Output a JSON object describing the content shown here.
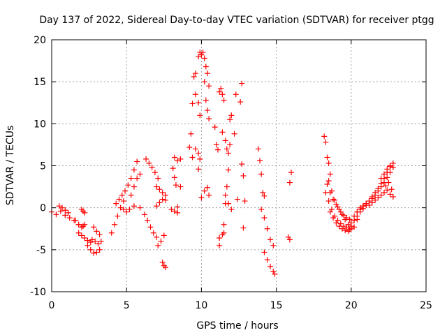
{
  "chart_data": {
    "type": "scatter",
    "title": "Day 137 of 2022, Sidereal Day-to-day VTEC variation (SDTVAR) for receiver ptgg",
    "xlabel": "GPS time / hours",
    "ylabel": "SDTVAR / TECUs",
    "xlim": [
      0,
      25
    ],
    "ylim": [
      -10,
      20
    ],
    "xticks": [
      "0",
      "5",
      "10",
      "15",
      "20",
      "25"
    ],
    "yticks": [
      "-10",
      "-5",
      "0",
      "5",
      "10",
      "15",
      "20"
    ],
    "grid": true,
    "marker": "+",
    "color": "#ff0000",
    "series": [
      {
        "name": "seg1",
        "x": [
          0.0,
          0.3,
          0.6,
          0.9,
          1.2,
          1.5,
          1.8,
          2.1
        ],
        "y": [
          -0.5,
          -0.8,
          -0.4,
          -0.9,
          -1.2,
          -1.5,
          -2.0,
          -2.2
        ]
      },
      {
        "name": "seg2",
        "x": [
          0.5,
          0.7,
          0.9,
          1.1
        ],
        "y": [
          0.2,
          0.0,
          -0.3,
          -0.6
        ]
      },
      {
        "name": "seg3",
        "x": [
          1.6,
          1.8,
          2.0,
          2.2
        ],
        "y": [
          -1.5,
          -2.0,
          -2.3,
          -2.0
        ]
      },
      {
        "name": "seg4",
        "x": [
          2.0,
          2.1,
          2.2
        ],
        "y": [
          -0.2,
          -0.4,
          -0.6
        ]
      },
      {
        "name": "seg5",
        "x": [
          1.8,
          2.0,
          2.2,
          2.4,
          2.6
        ],
        "y": [
          -3.0,
          -3.3,
          -3.6,
          -3.9,
          -4.1
        ]
      },
      {
        "name": "seg6",
        "x": [
          2.4,
          2.6,
          2.8,
          3.0,
          3.2
        ],
        "y": [
          -4.5,
          -5.0,
          -5.4,
          -5.3,
          -5.0
        ]
      },
      {
        "name": "seg7",
        "x": [
          2.7,
          2.9,
          3.1,
          3.3
        ],
        "y": [
          -3.8,
          -4.0,
          -4.3,
          -4.0
        ]
      },
      {
        "name": "seg8",
        "x": [
          2.8,
          3.0,
          3.2
        ],
        "y": [
          -2.3,
          -2.8,
          -3.2
        ]
      },
      {
        "name": "seg9",
        "x": [
          4.0,
          4.2,
          4.4,
          4.6,
          4.8
        ],
        "y": [
          -3.0,
          -2.0,
          -1.0,
          0.0,
          0.8
        ]
      },
      {
        "name": "seg10",
        "x": [
          4.3,
          4.5,
          4.7,
          4.9,
          5.1,
          5.3,
          5.5,
          5.7
        ],
        "y": [
          0.5,
          1.0,
          1.5,
          2.0,
          2.7,
          3.5,
          4.5,
          5.5
        ]
      },
      {
        "name": "seg11",
        "x": [
          5.3,
          5.5,
          5.7,
          5.9
        ],
        "y": [
          1.5,
          2.5,
          3.5,
          4.0
        ]
      },
      {
        "name": "seg12",
        "x": [
          4.8,
          5.0,
          5.2,
          5.5,
          5.9
        ],
        "y": [
          -0.2,
          -0.5,
          -0.2,
          0.2,
          0.0
        ]
      },
      {
        "name": "seg13",
        "x": [
          6.2,
          6.4,
          6.6,
          6.8,
          7.0
        ],
        "y": [
          -0.8,
          -1.5,
          -2.3,
          -3.0,
          -3.5
        ]
      },
      {
        "name": "seg14",
        "x": [
          6.3,
          6.5,
          6.7,
          6.9,
          7.1
        ],
        "y": [
          5.8,
          5.3,
          4.8,
          4.2,
          3.5
        ]
      },
      {
        "name": "seg15",
        "x": [
          7.1,
          7.3,
          7.5
        ],
        "y": [
          -4.5,
          -4.0,
          -3.3
        ]
      },
      {
        "name": "seg16",
        "x": [
          7.4,
          7.5,
          7.6
        ],
        "y": [
          -6.5,
          -6.9,
          -7.1
        ]
      },
      {
        "name": "seg17",
        "x": [
          7.0,
          7.2,
          7.4,
          7.6
        ],
        "y": [
          2.5,
          2.2,
          1.8,
          1.5
        ]
      },
      {
        "name": "seg18",
        "x": [
          7.0,
          7.2,
          7.4,
          7.6
        ],
        "y": [
          0.2,
          0.6,
          1.0,
          0.9
        ]
      },
      {
        "name": "seg19",
        "x": [
          8.1,
          8.2,
          8.3,
          8.4,
          8.6
        ],
        "y": [
          4.7,
          3.6,
          2.7,
          0.1,
          2.5
        ]
      },
      {
        "name": "seg20",
        "x": [
          8.0,
          8.2,
          8.4
        ],
        "y": [
          -0.2,
          -0.4,
          -0.6
        ]
      },
      {
        "name": "seg21",
        "x": [
          8.2,
          8.4,
          8.6
        ],
        "y": [
          6.0,
          5.6,
          5.8
        ]
      },
      {
        "name": "seg22",
        "x": [
          9.2,
          9.3,
          9.4,
          9.5,
          9.6
        ],
        "y": [
          7.2,
          8.8,
          12.4,
          15.6,
          16.0
        ]
      },
      {
        "name": "seg23",
        "x": [
          9.4,
          9.6,
          9.8,
          9.9
        ],
        "y": [
          6.0,
          7.0,
          6.5,
          5.8
        ]
      },
      {
        "name": "seg24",
        "x": [
          9.6,
          9.8,
          9.9
        ],
        "y": [
          13.5,
          12.5,
          11.0
        ]
      },
      {
        "name": "seg25",
        "x": [
          9.8,
          9.9,
          10.0,
          10.1,
          10.2
        ],
        "y": [
          18.0,
          18.5,
          18.2,
          18.5,
          17.8
        ]
      },
      {
        "name": "seg26",
        "x": [
          9.8,
          10.0
        ],
        "y": [
          4.6,
          1.2
        ]
      },
      {
        "name": "seg27",
        "x": [
          10.2,
          10.3,
          10.4,
          10.5
        ],
        "y": [
          15.0,
          12.8,
          11.6,
          10.6
        ]
      },
      {
        "name": "seg28",
        "x": [
          10.3,
          10.4,
          10.5
        ],
        "y": [
          16.8,
          16.0,
          14.5
        ]
      },
      {
        "name": "seg29",
        "x": [
          10.2,
          10.4,
          10.5
        ],
        "y": [
          2.0,
          2.4,
          1.5
        ]
      },
      {
        "name": "seg30",
        "x": [
          10.9,
          11.0,
          11.1,
          11.2
        ],
        "y": [
          9.6,
          7.5,
          6.9,
          -4.5
        ]
      },
      {
        "name": "seg31",
        "x": [
          11.2,
          11.4,
          11.5
        ],
        "y": [
          -3.6,
          -3.2,
          -3.0
        ]
      },
      {
        "name": "seg32",
        "x": [
          11.2,
          11.3,
          11.4,
          11.5
        ],
        "y": [
          13.8,
          14.2,
          13.5,
          12.8
        ]
      },
      {
        "name": "seg33",
        "x": [
          11.5,
          11.6,
          11.7,
          11.8,
          11.9,
          12.0
        ],
        "y": [
          -2.0,
          0.5,
          2.5,
          4.5,
          7.5,
          11.0
        ]
      },
      {
        "name": "seg34",
        "x": [
          11.4,
          11.6,
          11.7,
          11.8,
          11.9
        ],
        "y": [
          9.0,
          8.0,
          7.0,
          6.5,
          10.5
        ]
      },
      {
        "name": "seg35",
        "x": [
          11.6,
          11.8,
          12.0
        ],
        "y": [
          1.5,
          0.5,
          -0.2
        ]
      },
      {
        "name": "seg36",
        "x": [
          12.2,
          12.3,
          12.4
        ],
        "y": [
          8.8,
          13.5,
          1.0
        ]
      },
      {
        "name": "seg37",
        "x": [
          12.6,
          12.7,
          12.8
        ],
        "y": [
          12.6,
          14.8,
          -2.4
        ]
      },
      {
        "name": "seg38",
        "x": [
          12.7,
          12.8,
          12.9
        ],
        "y": [
          5.2,
          3.8,
          0.8
        ]
      },
      {
        "name": "seg39",
        "x": [
          13.8,
          13.9,
          14.0,
          14.1,
          14.2
        ],
        "y": [
          7.0,
          5.6,
          4.0,
          1.8,
          1.4
        ]
      },
      {
        "name": "seg40",
        "x": [
          14.0,
          14.2,
          14.4,
          14.6,
          14.8
        ],
        "y": [
          -0.2,
          -1.2,
          -2.5,
          -3.8,
          -4.5
        ]
      },
      {
        "name": "seg41",
        "x": [
          14.2,
          14.4,
          14.6,
          14.8,
          14.9
        ],
        "y": [
          -5.3,
          -6.2,
          -7.0,
          -7.6,
          -7.9
        ]
      },
      {
        "name": "seg42",
        "x": [
          15.8,
          15.9,
          16.0
        ],
        "y": [
          -3.5,
          -3.8,
          4.2
        ]
      },
      {
        "name": "seg43",
        "x": [
          15.9
        ],
        "y": [
          3.0
        ]
      },
      {
        "name": "seg44",
        "x": [
          18.2,
          18.3,
          18.4,
          18.5,
          18.6
        ],
        "y": [
          8.5,
          7.8,
          6.0,
          5.3,
          4.0
        ]
      },
      {
        "name": "seg45",
        "x": [
          18.4,
          18.6,
          18.8,
          19.0,
          19.2,
          19.4,
          19.6,
          19.8,
          20.0
        ],
        "y": [
          2.8,
          1.8,
          1.0,
          0.4,
          -0.2,
          -0.8,
          -1.4,
          -2.0,
          -2.5
        ]
      },
      {
        "name": "seg46",
        "x": [
          18.3,
          18.5,
          18.7,
          18.9,
          19.1,
          19.3,
          19.5,
          19.7,
          19.9
        ],
        "y": [
          1.8,
          0.8,
          -0.2,
          -1.0,
          -1.5,
          -1.9,
          -2.2,
          -2.4,
          -2.6
        ]
      },
      {
        "name": "seg47",
        "x": [
          18.5,
          18.7,
          18.9,
          19.1,
          19.3,
          19.5,
          19.7,
          19.9
        ],
        "y": [
          3.2,
          2.0,
          0.9,
          0.1,
          -0.5,
          -0.9,
          -1.2,
          -1.4
        ]
      },
      {
        "name": "seg48",
        "x": [
          18.6,
          18.8,
          19.0,
          19.2,
          19.4,
          19.6,
          19.8
        ],
        "y": [
          -0.5,
          -1.2,
          -1.8,
          -2.2,
          -2.5,
          -2.7,
          -2.8
        ]
      },
      {
        "name": "seg49",
        "x": [
          20.0,
          20.2,
          20.4,
          20.6,
          20.8,
          21.0,
          21.2,
          21.4,
          21.6,
          21.8,
          22.0,
          22.2,
          22.4,
          22.6
        ],
        "y": [
          -2.2,
          -1.5,
          -1.0,
          -0.5,
          -0.1,
          0.3,
          0.8,
          1.3,
          1.8,
          2.3,
          2.9,
          3.5,
          4.2,
          4.9
        ]
      },
      {
        "name": "seg50",
        "x": [
          20.2,
          20.4,
          20.6,
          20.8,
          21.0,
          21.2,
          21.4,
          21.6,
          21.8,
          22.0,
          22.2,
          22.4,
          22.6,
          22.8
        ],
        "y": [
          -1.0,
          -0.5,
          0.0,
          0.2,
          0.5,
          0.8,
          1.1,
          1.5,
          2.0,
          2.5,
          3.0,
          3.6,
          4.2,
          4.8
        ]
      },
      {
        "name": "seg51",
        "x": [
          20.4,
          20.6,
          20.8,
          21.0,
          21.2,
          21.4,
          21.6,
          21.8,
          22.0,
          22.2,
          22.4,
          22.6,
          22.8
        ],
        "y": [
          -0.5,
          -0.2,
          0.2,
          0.5,
          0.3,
          0.6,
          0.9,
          1.2,
          1.5,
          1.8,
          2.1,
          1.6,
          1.3
        ]
      },
      {
        "name": "seg52",
        "x": [
          22.0,
          22.2,
          22.4,
          22.6,
          22.8
        ],
        "y": [
          3.5,
          4.0,
          4.6,
          5.0,
          5.3
        ]
      },
      {
        "name": "seg53",
        "x": [
          22.3,
          22.5,
          22.7
        ],
        "y": [
          2.6,
          3.0,
          2.2
        ]
      },
      {
        "name": "seg54",
        "x": [
          20.0,
          20.2,
          20.4
        ],
        "y": [
          -1.8,
          -2.3,
          -1.4
        ]
      }
    ]
  }
}
